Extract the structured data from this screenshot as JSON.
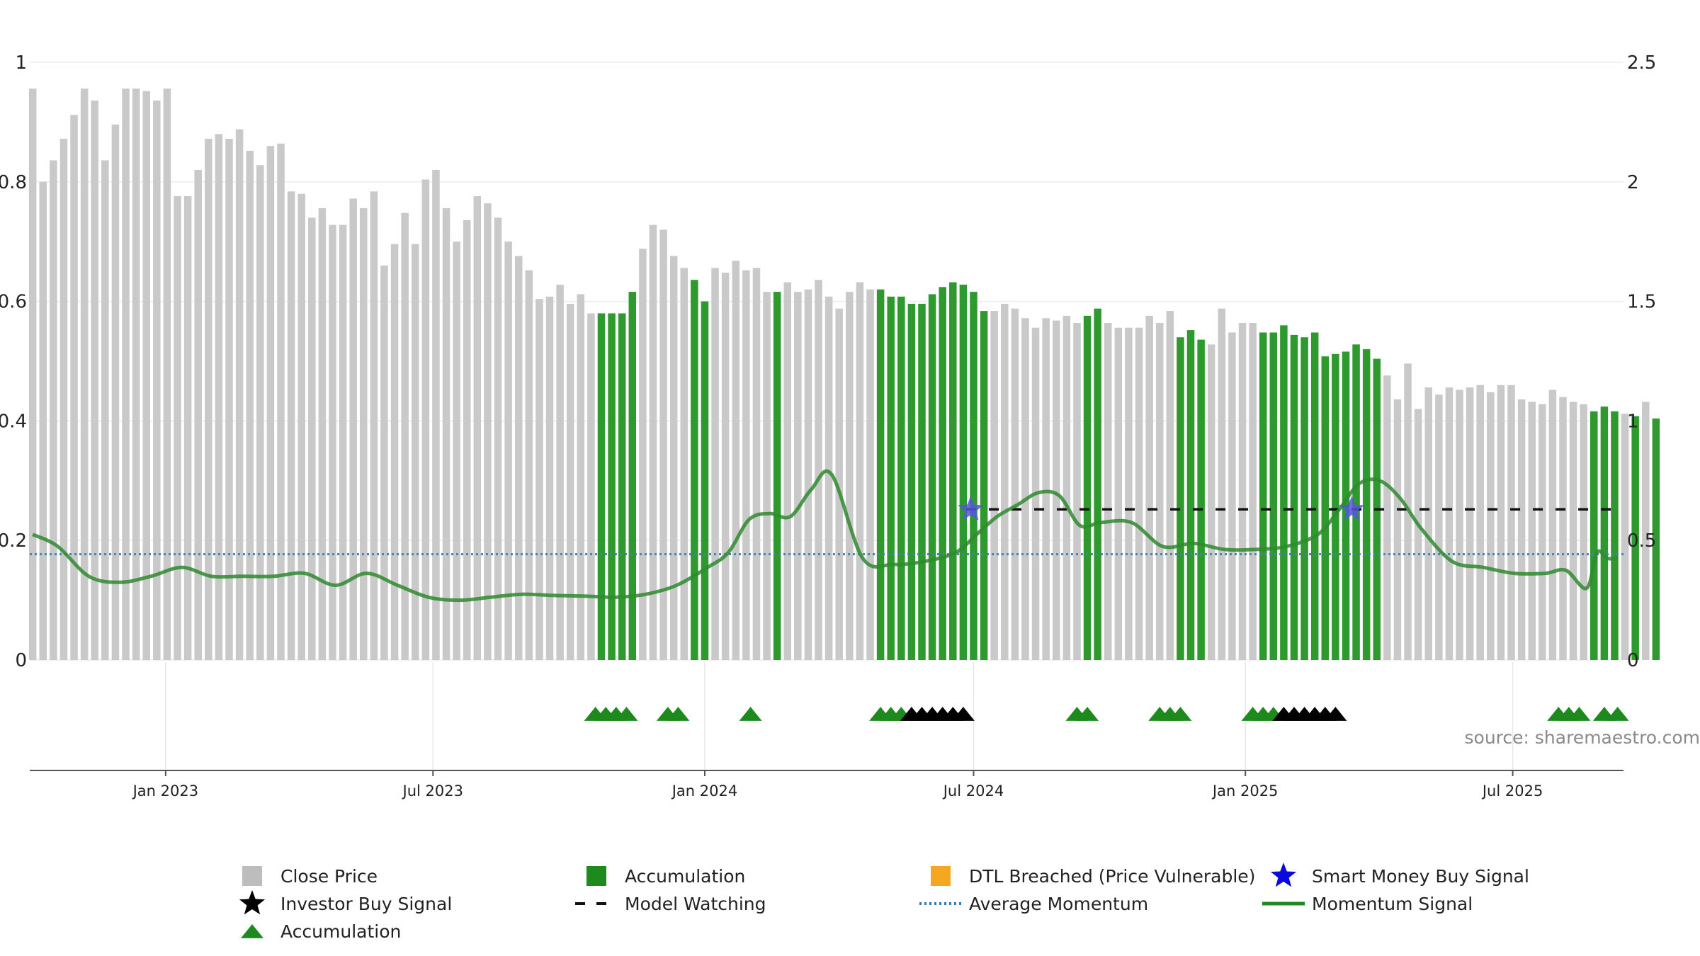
{
  "source_label": "source: sharemaestro.com",
  "colors": {
    "close_price": "#c9c9c9",
    "accumulation_bar": "#2e9a2e",
    "accumulation_marker": "#1e8a1e",
    "investor_marker": "#000000",
    "smart_money_star": "#5555dd",
    "model_watching": "#111111",
    "average_momentum": "#4a7fa6",
    "momentum": "#2f8a2f",
    "dtl_breached": "#f5a623"
  },
  "legend": [
    {
      "key": "close_price",
      "label": "Close Price",
      "symbol": "square",
      "color": "#bdbdbd"
    },
    {
      "key": "accumulation_bar",
      "label": "Accumulation",
      "symbol": "square",
      "color": "#1e8a1e"
    },
    {
      "key": "dtl_breached",
      "label": "DTL Breached (Price Vulnerable)",
      "symbol": "square",
      "color": "#f5a623"
    },
    {
      "key": "smart_money",
      "label": "Smart Money Buy Signal",
      "symbol": "star",
      "color": "#0a0adc"
    },
    {
      "key": "investor_buy",
      "label": "Investor Buy Signal",
      "symbol": "star",
      "color": "#000000"
    },
    {
      "key": "model_watching",
      "label": "Model Watching",
      "symbol": "dash",
      "color": "#111111"
    },
    {
      "key": "average_momentum",
      "label": "Average Momentum",
      "symbol": "dot",
      "color": "#3a78a8"
    },
    {
      "key": "momentum_signal",
      "label": "Momentum Signal",
      "symbol": "line",
      "color": "#1e8a1e"
    },
    {
      "key": "accumulation_marker",
      "label": "Accumulation",
      "symbol": "triangle",
      "color": "#1e8a1e"
    }
  ],
  "chart_data": {
    "type": "bar",
    "x_tick_labels": [
      {
        "label": "Jan 2023",
        "date": "2023-01-01"
      },
      {
        "label": "Jul 2023",
        "date": "2023-07-01"
      },
      {
        "label": "Jan 2024",
        "date": "2024-01-01"
      },
      {
        "label": "Jul 2024",
        "date": "2024-07-01"
      },
      {
        "label": "Jan 2025",
        "date": "2025-01-01"
      },
      {
        "label": "Jul 2025",
        "date": "2025-07-01"
      }
    ],
    "x_range": [
      "2022-10-01",
      "2025-09-14"
    ],
    "left_axis": {
      "range": [
        0,
        1
      ],
      "ticks": [
        0,
        0.2,
        0.4,
        0.6,
        0.8,
        1
      ],
      "tick_labels": [
        "0",
        "0.2",
        "0.4",
        "0.6",
        "0.8",
        "1"
      ]
    },
    "right_axis": {
      "range": [
        0,
        2.5
      ],
      "ticks": [
        0,
        0.5,
        1,
        1.5,
        2,
        2.5
      ],
      "tick_labels": [
        "0",
        "0.5",
        "1",
        "1.5",
        "2",
        "2.5"
      ]
    },
    "grid": true,
    "legend_position": "bottom",
    "close_price_weekly": {
      "start_date": "2022-10-03",
      "values": [
        2.39,
        2.0,
        2.09,
        2.18,
        2.28,
        2.39,
        2.34,
        2.09,
        2.24,
        2.39,
        2.39,
        2.38,
        2.34,
        2.39,
        1.94,
        1.94,
        2.05,
        2.18,
        2.2,
        2.18,
        2.22,
        2.13,
        2.07,
        2.15,
        2.16,
        1.96,
        1.95,
        1.85,
        1.89,
        1.82,
        1.82,
        1.93,
        1.89,
        1.96,
        1.65,
        1.74,
        1.87,
        1.74,
        2.01,
        2.05,
        1.89,
        1.75,
        1.84,
        1.94,
        1.91,
        1.85,
        1.75,
        1.69,
        1.63,
        1.51,
        1.52,
        1.57,
        1.49,
        1.53,
        1.45,
        1.45,
        1.45,
        1.45,
        1.54,
        1.72,
        1.82,
        1.8,
        1.69,
        1.64,
        1.59,
        1.5,
        1.64,
        1.62,
        1.67,
        1.63,
        1.64,
        1.54,
        1.54,
        1.58,
        1.54,
        1.55,
        1.59,
        1.52,
        1.47,
        1.54,
        1.58,
        1.55,
        1.55,
        1.52,
        1.52,
        1.49,
        1.49,
        1.53,
        1.56,
        1.58,
        1.57,
        1.54,
        1.46,
        1.46,
        1.49,
        1.47,
        1.43,
        1.39,
        1.43,
        1.42,
        1.44,
        1.41,
        1.44,
        1.47,
        1.41,
        1.39,
        1.39,
        1.39,
        1.44,
        1.41,
        1.46,
        1.35,
        1.38,
        1.34,
        1.32,
        1.47,
        1.37,
        1.41,
        1.41,
        1.37,
        1.37,
        1.4,
        1.36,
        1.35,
        1.37,
        1.27,
        1.28,
        1.29,
        1.32,
        1.3,
        1.26,
        1.19,
        1.09,
        1.24,
        1.05,
        1.14,
        1.11,
        1.14,
        1.13,
        1.14,
        1.15,
        1.12,
        1.15,
        1.15,
        1.09,
        1.08,
        1.07,
        1.13,
        1.1,
        1.08,
        1.07,
        1.04,
        1.06,
        1.04,
        1.03,
        1.02,
        1.08,
        1.01
      ],
      "accumulation_weeks": [
        55,
        56,
        57,
        58,
        64,
        65,
        72,
        82,
        83,
        84,
        85,
        86,
        87,
        88,
        89,
        90,
        91,
        92,
        102,
        103,
        111,
        112,
        113,
        119,
        120,
        121,
        122,
        123,
        124,
        125,
        126,
        127,
        128,
        129,
        130,
        151,
        152,
        153,
        155,
        157
      ]
    },
    "momentum_signal": {
      "dates": [
        "2022-10-03",
        "2022-10-20",
        "2022-11-10",
        "2022-12-01",
        "2022-12-22",
        "2023-01-12",
        "2023-02-01",
        "2023-02-22",
        "2023-03-15",
        "2023-04-05",
        "2023-04-26",
        "2023-05-17",
        "2023-06-07",
        "2023-06-28",
        "2023-07-19",
        "2023-08-09",
        "2023-08-30",
        "2023-09-20",
        "2023-10-11",
        "2023-11-01",
        "2023-11-22",
        "2023-12-13",
        "2024-01-03",
        "2024-01-17",
        "2024-01-31",
        "2024-02-14",
        "2024-02-28",
        "2024-03-13",
        "2024-03-27",
        "2024-04-17",
        "2024-05-08",
        "2024-05-29",
        "2024-06-19",
        "2024-07-03",
        "2024-07-17",
        "2024-07-31",
        "2024-08-14",
        "2024-08-28",
        "2024-09-11",
        "2024-09-25",
        "2024-10-16",
        "2024-11-06",
        "2024-11-27",
        "2024-12-18",
        "2025-01-08",
        "2025-01-29",
        "2025-02-19",
        "2025-03-05",
        "2025-03-19",
        "2025-04-02",
        "2025-04-16",
        "2025-04-30",
        "2025-05-21",
        "2025-06-11",
        "2025-07-02",
        "2025-07-23",
        "2025-08-06",
        "2025-08-20",
        "2025-08-27",
        "2025-09-03",
        "2025-09-10"
      ],
      "values": [
        0.21,
        0.19,
        0.14,
        0.13,
        0.14,
        0.155,
        0.14,
        0.14,
        0.14,
        0.145,
        0.125,
        0.145,
        0.125,
        0.105,
        0.1,
        0.105,
        0.11,
        0.108,
        0.107,
        0.105,
        0.11,
        0.125,
        0.155,
        0.18,
        0.235,
        0.245,
        0.24,
        0.285,
        0.31,
        0.17,
        0.16,
        0.165,
        0.18,
        0.21,
        0.24,
        0.26,
        0.28,
        0.275,
        0.225,
        0.23,
        0.23,
        0.19,
        0.195,
        0.185,
        0.185,
        0.19,
        0.21,
        0.25,
        0.295,
        0.3,
        0.27,
        0.22,
        0.165,
        0.155,
        0.145,
        0.145,
        0.15,
        0.12,
        0.18,
        0.17,
        0.17
      ]
    },
    "average_momentum": 0.177,
    "model_watching": {
      "value": 0.252,
      "start": "2024-06-26",
      "end": "2025-09-14"
    },
    "smart_money_buy_signals": [
      {
        "date": "2024-06-29",
        "value": 0.252
      },
      {
        "date": "2025-03-14",
        "value": 0.252
      }
    ],
    "accumulation_markers": [
      "2023-10-19",
      "2023-10-26",
      "2023-11-02",
      "2023-11-09",
      "2023-12-07",
      "2023-12-14",
      "2024-02-01",
      "2024-04-29",
      "2024-05-06",
      "2024-05-13",
      "2024-09-09",
      "2024-09-16",
      "2024-11-04",
      "2024-11-11",
      "2024-11-18",
      "2025-01-06",
      "2025-01-13",
      "2025-01-20",
      "2025-08-01",
      "2025-08-08",
      "2025-08-15",
      "2025-09-01",
      "2025-09-10"
    ],
    "investor_buy_markers": [
      "2024-05-20",
      "2024-05-27",
      "2024-06-03",
      "2024-06-10",
      "2024-06-17",
      "2024-06-24",
      "2025-01-27",
      "2025-02-03",
      "2025-02-10",
      "2025-02-17",
      "2025-02-24",
      "2025-03-03"
    ]
  }
}
